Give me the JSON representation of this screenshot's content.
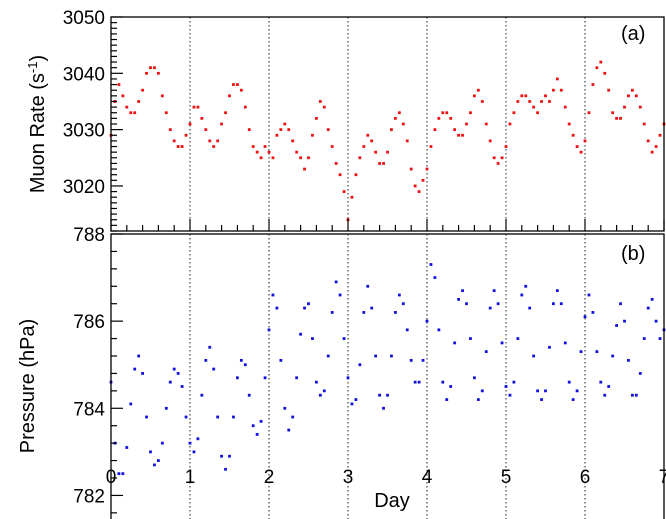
{
  "colors": {
    "muon": "#ee1111",
    "pressure": "#1111dd",
    "axis": "#000000"
  },
  "chart_data": [
    {
      "type": "scatter",
      "panel_label": "(a)",
      "xlabel": "",
      "ylabel": "Muon Rate (s",
      "ylabel_sup": "-1",
      "ylabel_end": ")",
      "xlim": [
        0,
        7
      ],
      "ylim": [
        3012,
        3050
      ],
      "yticks_major": [
        3020,
        3030,
        3040,
        3050
      ],
      "ytick_labels": [
        "3020",
        "3030",
        "3040",
        "3050"
      ],
      "grid": "vertical dotted lines at each day",
      "series": [
        {
          "color": "#ee1111",
          "x": [
            0,
            0.05,
            0.1,
            0.15,
            0.2,
            0.25,
            0.3,
            0.35,
            0.4,
            0.45,
            0.5,
            0.55,
            0.6,
            0.65,
            0.7,
            0.75,
            0.8,
            0.85,
            0.9,
            0.95,
            1,
            1.05,
            1.1,
            1.15,
            1.2,
            1.25,
            1.3,
            1.35,
            1.4,
            1.45,
            1.5,
            1.55,
            1.6,
            1.65,
            1.7,
            1.75,
            1.8,
            1.85,
            1.9,
            1.95,
            2,
            2.05,
            2.1,
            2.15,
            2.2,
            2.25,
            2.3,
            2.35,
            2.4,
            2.45,
            2.5,
            2.55,
            2.6,
            2.65,
            2.7,
            2.75,
            2.8,
            2.85,
            2.9,
            2.95,
            3,
            3.05,
            3.1,
            3.15,
            3.2,
            3.25,
            3.3,
            3.35,
            3.4,
            3.45,
            3.5,
            3.55,
            3.6,
            3.65,
            3.7,
            3.75,
            3.8,
            3.85,
            3.9,
            3.95,
            4,
            4.05,
            4.1,
            4.15,
            4.2,
            4.25,
            4.3,
            4.35,
            4.4,
            4.45,
            4.5,
            4.55,
            4.6,
            4.65,
            4.7,
            4.75,
            4.8,
            4.85,
            4.9,
            4.95,
            5,
            5.05,
            5.1,
            5.15,
            5.2,
            5.25,
            5.3,
            5.35,
            5.4,
            5.45,
            5.5,
            5.55,
            5.6,
            5.65,
            5.7,
            5.75,
            5.8,
            5.85,
            5.9,
            5.95,
            6,
            6.05,
            6.1,
            6.15,
            6.2,
            6.25,
            6.3,
            6.35,
            6.4,
            6.45,
            6.5,
            6.55,
            6.6,
            6.65,
            6.7,
            6.75,
            6.8,
            6.85,
            6.9,
            6.95,
            7
          ],
          "y": [
            3029,
            3035,
            3038,
            3036,
            3034,
            3033,
            3033,
            3035,
            3037,
            3040,
            3041,
            3041,
            3040,
            3036,
            3033,
            3030,
            3028,
            3027,
            3027,
            3029,
            3031,
            3034,
            3034,
            3032,
            3030,
            3028,
            3027,
            3028,
            3031,
            3033,
            3036,
            3038,
            3038,
            3037,
            3034,
            3030,
            3027,
            3026,
            3025,
            3027,
            3026,
            3025,
            3029,
            3030,
            3031,
            3030,
            3028,
            3026,
            3025,
            3023,
            3025,
            3029,
            3032,
            3035,
            3034,
            3030,
            3027,
            3024,
            3022,
            3019,
            3014,
            3018,
            3022,
            3025,
            3027,
            3029,
            3028,
            3026,
            3024,
            3024,
            3026,
            3030,
            3032,
            3033,
            3031,
            3028,
            3023,
            3020,
            3019,
            3021,
            3023,
            3027,
            3030,
            3032,
            3033,
            3033,
            3032,
            3030,
            3029,
            3029,
            3031,
            3033,
            3036,
            3037,
            3035,
            3031,
            3028,
            3025,
            3024,
            3025,
            3027,
            3031,
            3033,
            3035,
            3036,
            3036,
            3035,
            3034,
            3033,
            3035,
            3036,
            3035,
            3037,
            3039,
            3037,
            3034,
            3031,
            3029,
            3027,
            3026,
            3028,
            3033,
            3038,
            3041,
            3042,
            3040,
            3037,
            3033,
            3032,
            3032,
            3034,
            3036,
            3037,
            3036,
            3034,
            3031,
            3028,
            3026,
            3027,
            3029,
            3031
          ]
        }
      ]
    },
    {
      "type": "scatter",
      "panel_label": "(b)",
      "xlabel": "Day",
      "ylabel": "Pressure (hPa)",
      "xlim": [
        0,
        7
      ],
      "ylim": [
        781,
        788
      ],
      "xticks_major": [
        0,
        1,
        2,
        3,
        4,
        5,
        6,
        7
      ],
      "xtick_labels": [
        "0",
        "1",
        "2",
        "3",
        "4",
        "5",
        "6",
        "7"
      ],
      "yticks_major": [
        782,
        784,
        786,
        788
      ],
      "ytick_labels": [
        "782",
        "784",
        "786",
        "788"
      ],
      "grid": "vertical dotted lines at each day",
      "series": [
        {
          "color": "#1111dd",
          "x": [
            0,
            0.05,
            0.1,
            0.15,
            0.2,
            0.25,
            0.3,
            0.35,
            0.4,
            0.45,
            0.5,
            0.55,
            0.6,
            0.65,
            0.7,
            0.75,
            0.8,
            0.85,
            0.9,
            0.95,
            1,
            1.05,
            1.1,
            1.15,
            1.2,
            1.25,
            1.3,
            1.35,
            1.4,
            1.45,
            1.5,
            1.55,
            1.6,
            1.65,
            1.7,
            1.75,
            1.8,
            1.85,
            1.9,
            1.95,
            2,
            2.05,
            2.1,
            2.15,
            2.2,
            2.25,
            2.3,
            2.35,
            2.4,
            2.45,
            2.5,
            2.55,
            2.6,
            2.65,
            2.7,
            2.75,
            2.8,
            2.85,
            2.9,
            2.95,
            3,
            3.05,
            3.1,
            3.15,
            3.2,
            3.25,
            3.3,
            3.35,
            3.4,
            3.45,
            3.5,
            3.55,
            3.6,
            3.65,
            3.7,
            3.75,
            3.8,
            3.85,
            3.9,
            3.95,
            4,
            4.05,
            4.1,
            4.15,
            4.2,
            4.25,
            4.3,
            4.35,
            4.4,
            4.45,
            4.5,
            4.55,
            4.6,
            4.65,
            4.7,
            4.75,
            4.8,
            4.85,
            4.9,
            4.95,
            5,
            5.05,
            5.1,
            5.15,
            5.2,
            5.25,
            5.3,
            5.35,
            5.4,
            5.45,
            5.5,
            5.55,
            5.6,
            5.65,
            5.7,
            5.75,
            5.8,
            5.85,
            5.9,
            5.95,
            6,
            6.05,
            6.1,
            6.15,
            6.2,
            6.25,
            6.3,
            6.35,
            6.4,
            6.45,
            6.5,
            6.55,
            6.6,
            6.65,
            6.7,
            6.75,
            6.8,
            6.85,
            6.9,
            6.95,
            7
          ],
          "y": [
            784.6,
            783.2,
            782.5,
            782.5,
            783.1,
            784.1,
            784.9,
            785.2,
            784.8,
            783.8,
            783.0,
            782.7,
            782.8,
            783.2,
            784.0,
            784.6,
            784.9,
            784.8,
            784.5,
            783.8,
            783.2,
            783.0,
            783.3,
            784.3,
            785.1,
            785.4,
            784.9,
            783.8,
            782.9,
            782.6,
            782.9,
            783.8,
            784.7,
            785.1,
            785.0,
            784.3,
            783.6,
            783.4,
            783.7,
            784.7,
            785.8,
            786.6,
            786.3,
            785.1,
            784.0,
            783.5,
            783.8,
            784.7,
            785.7,
            786.3,
            786.4,
            785.6,
            784.6,
            784.3,
            784.4,
            785.2,
            786.2,
            786.9,
            786.6,
            785.6,
            784.7,
            784.1,
            784.2,
            785.0,
            786.2,
            786.8,
            786.3,
            785.2,
            784.3,
            784.0,
            784.3,
            785.2,
            786.2,
            786.6,
            786.4,
            785.8,
            785.1,
            784.6,
            784.6,
            785.1,
            786.0,
            787.3,
            787.0,
            785.8,
            784.6,
            784.2,
            784.5,
            785.5,
            786.5,
            786.7,
            786.4,
            785.6,
            784.7,
            784.2,
            784.4,
            785.3,
            786.3,
            786.7,
            786.4,
            785.5,
            784.5,
            784.3,
            784.6,
            785.6,
            786.6,
            786.8,
            786.3,
            785.2,
            784.4,
            784.2,
            784.4,
            785.4,
            786.4,
            786.7,
            786.4,
            785.5,
            784.6,
            784.2,
            784.4,
            785.3,
            786.1,
            786.6,
            786.2,
            785.3,
            784.6,
            784.3,
            784.5,
            785.2,
            785.9,
            786.4,
            786.0,
            785.1,
            784.3,
            784.3,
            784.8,
            785.6,
            786.3,
            786.5,
            786.0,
            785.6,
            785.8
          ]
        }
      ]
    }
  ]
}
